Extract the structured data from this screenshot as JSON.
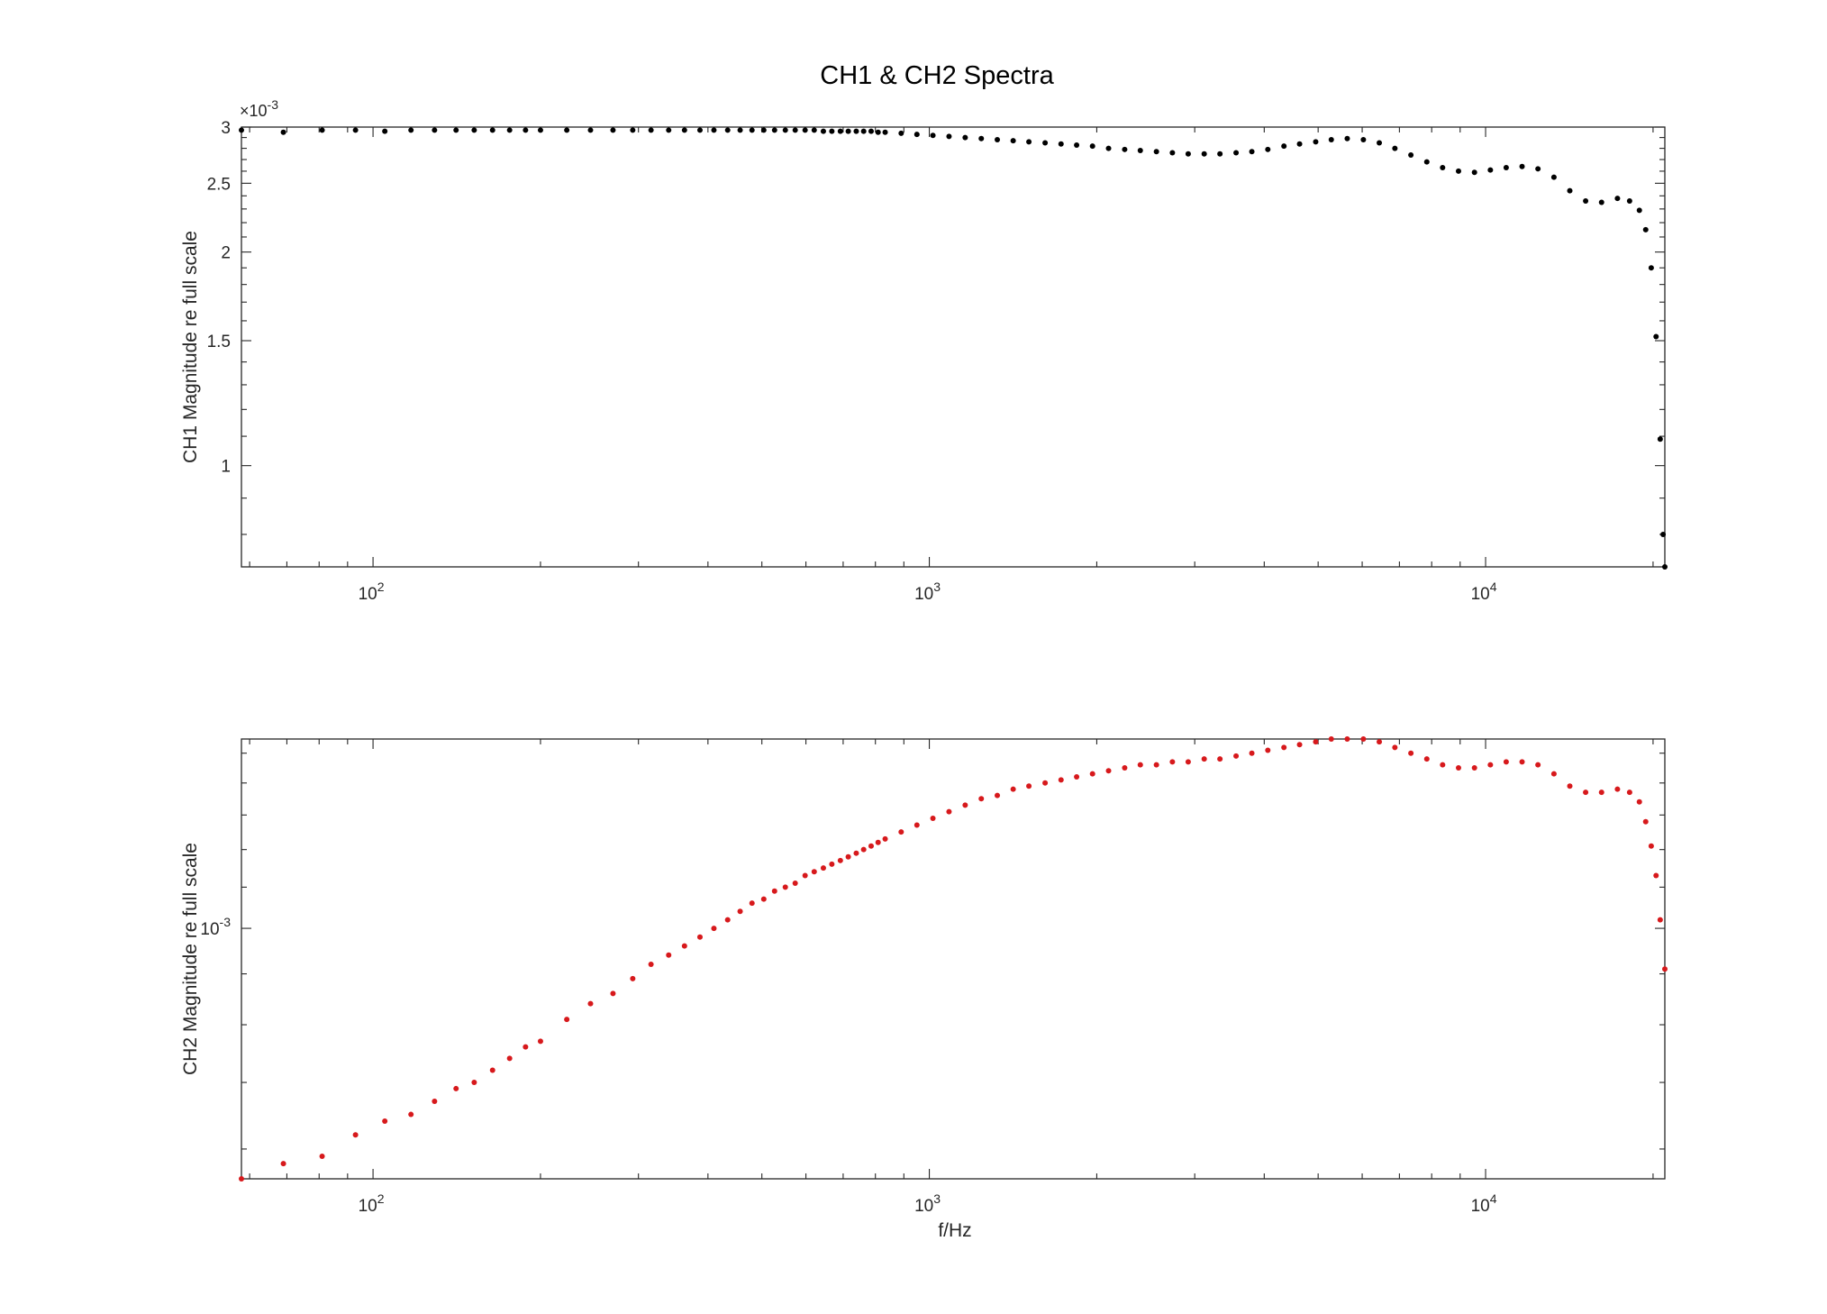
{
  "figure": {
    "title": "CH1 & CH2 Spectra"
  },
  "chart_data": [
    {
      "type": "scatter",
      "name": "top-panel",
      "xlabel": "",
      "ylabel": "CH1 Magnitude re full scale",
      "xscale": "log",
      "yscale": "log",
      "xlim": [
        58,
        21000
      ],
      "ylim": [
        0.00072,
        0.003
      ],
      "exponent_label": "×10",
      "exponent_sup": "-3",
      "x_ticks": [
        {
          "value": 100,
          "base": "10",
          "sup": "2"
        },
        {
          "value": 1000,
          "base": "10",
          "sup": "3"
        },
        {
          "value": 10000,
          "base": "10",
          "sup": "4"
        }
      ],
      "y_ticks": [
        {
          "value": 0.001,
          "label": "1"
        },
        {
          "value": 0.0015,
          "label": "1.5"
        },
        {
          "value": 0.002,
          "label": "2"
        },
        {
          "value": 0.0025,
          "label": "2.5"
        },
        {
          "value": 0.003,
          "label": "3"
        }
      ],
      "grid": false,
      "box": true,
      "series": [
        {
          "color": "#000000",
          "x": [
            58,
            69,
            81,
            93,
            105,
            117,
            129,
            141,
            152,
            164,
            176,
            188,
            200,
            223,
            246,
            270,
            293,
            316,
            340,
            363,
            387,
            410,
            434,
            457,
            480,
            504,
            527,
            551,
            574,
            598,
            621,
            645,
            668,
            692,
            715,
            739,
            762,
            786,
            809,
            833,
            890,
            950,
            1015,
            1085,
            1160,
            1240,
            1325,
            1415,
            1510,
            1615,
            1725,
            1840,
            1965,
            2100,
            2245,
            2395,
            2560,
            2735,
            2920,
            3120,
            3330,
            3560,
            3800,
            4060,
            4340,
            4630,
            4950,
            5280,
            5640,
            6030,
            6440,
            6870,
            7340,
            7840,
            8370,
            8940,
            9550,
            10200,
            10890,
            11630,
            12420,
            13270,
            14170,
            15130,
            16160,
            17260,
            18150,
            18900,
            19400,
            19850,
            20250,
            20600,
            20850,
            21000
          ],
          "y": [
            0.00297,
            0.00295,
            0.00297,
            0.00297,
            0.00296,
            0.00297,
            0.00297,
            0.00297,
            0.00297,
            0.00297,
            0.00297,
            0.00297,
            0.00297,
            0.00297,
            0.00297,
            0.00297,
            0.00297,
            0.00297,
            0.00297,
            0.00297,
            0.00297,
            0.00297,
            0.00297,
            0.00297,
            0.00297,
            0.00297,
            0.00297,
            0.00297,
            0.00297,
            0.00297,
            0.00297,
            0.00296,
            0.00296,
            0.00296,
            0.00296,
            0.00296,
            0.00296,
            0.00296,
            0.00295,
            0.00295,
            0.00294,
            0.00293,
            0.00292,
            0.00291,
            0.0029,
            0.00289,
            0.00288,
            0.00287,
            0.00286,
            0.00285,
            0.00284,
            0.00283,
            0.00282,
            0.0028,
            0.00279,
            0.00278,
            0.00277,
            0.00276,
            0.00275,
            0.00275,
            0.00275,
            0.00276,
            0.00277,
            0.00279,
            0.00282,
            0.00284,
            0.00286,
            0.00288,
            0.00289,
            0.00288,
            0.00285,
            0.0028,
            0.00274,
            0.00268,
            0.00263,
            0.0026,
            0.00259,
            0.00261,
            0.00263,
            0.00264,
            0.00262,
            0.00255,
            0.00244,
            0.00236,
            0.00235,
            0.00238,
            0.00236,
            0.00229,
            0.00215,
            0.0019,
            0.00152,
            0.00109,
            0.0008,
            0.00072
          ]
        }
      ]
    },
    {
      "type": "scatter",
      "name": "bottom-panel",
      "xlabel": "f/Hz",
      "ylabel": "CH2 Magnitude re full scale",
      "xscale": "log",
      "yscale": "log",
      "xlim": [
        58,
        21000
      ],
      "ylim": [
        0.00056,
        0.00155
      ],
      "x_ticks": [
        {
          "value": 100,
          "base": "10",
          "sup": "2"
        },
        {
          "value": 1000,
          "base": "10",
          "sup": "3"
        },
        {
          "value": 10000,
          "base": "10",
          "sup": "4"
        }
      ],
      "y_ticks": [
        {
          "value": 0.001,
          "base": "10",
          "sup": "-3"
        }
      ],
      "grid": false,
      "box": true,
      "series": [
        {
          "color": "#d7191c",
          "x": [
            58,
            69,
            81,
            93,
            105,
            117,
            129,
            141,
            152,
            164,
            176,
            188,
            200,
            223,
            246,
            270,
            293,
            316,
            340,
            363,
            387,
            410,
            434,
            457,
            480,
            504,
            527,
            551,
            574,
            598,
            621,
            645,
            668,
            692,
            715,
            739,
            762,
            786,
            809,
            833,
            890,
            950,
            1015,
            1085,
            1160,
            1240,
            1325,
            1415,
            1510,
            1615,
            1725,
            1840,
            1965,
            2100,
            2245,
            2395,
            2560,
            2735,
            2920,
            3120,
            3330,
            3560,
            3800,
            4060,
            4340,
            4630,
            4950,
            5280,
            5640,
            6030,
            6440,
            6870,
            7340,
            7840,
            8370,
            8940,
            9550,
            10200,
            10890,
            11630,
            12420,
            13270,
            14170,
            15130,
            16160,
            17260,
            18150,
            18900,
            19400,
            19850,
            20250,
            20600,
            21000
          ],
          "y": [
            0.00056,
            0.00058,
            0.00059,
            0.00062,
            0.00064,
            0.00065,
            0.00067,
            0.00069,
            0.0007,
            0.00072,
            0.00074,
            0.00076,
            0.00077,
            0.00081,
            0.00084,
            0.00086,
            0.00089,
            0.00092,
            0.00094,
            0.00096,
            0.00098,
            0.001,
            0.00102,
            0.00104,
            0.00106,
            0.00107,
            0.00109,
            0.0011,
            0.00111,
            0.00113,
            0.00114,
            0.00115,
            0.00116,
            0.00117,
            0.00118,
            0.00119,
            0.0012,
            0.00121,
            0.00122,
            0.00123,
            0.00125,
            0.00127,
            0.00129,
            0.00131,
            0.00133,
            0.00135,
            0.00136,
            0.00138,
            0.00139,
            0.0014,
            0.00141,
            0.00142,
            0.00143,
            0.00144,
            0.00145,
            0.00146,
            0.00146,
            0.00147,
            0.00147,
            0.00148,
            0.00148,
            0.00149,
            0.0015,
            0.00151,
            0.00152,
            0.00153,
            0.00154,
            0.00155,
            0.00155,
            0.00155,
            0.00154,
            0.00152,
            0.0015,
            0.00148,
            0.00146,
            0.00145,
            0.00145,
            0.00146,
            0.00147,
            0.00147,
            0.00146,
            0.00143,
            0.00139,
            0.00137,
            0.00137,
            0.00138,
            0.00137,
            0.00134,
            0.00128,
            0.00121,
            0.00113,
            0.00102,
            0.00091
          ]
        }
      ]
    }
  ]
}
